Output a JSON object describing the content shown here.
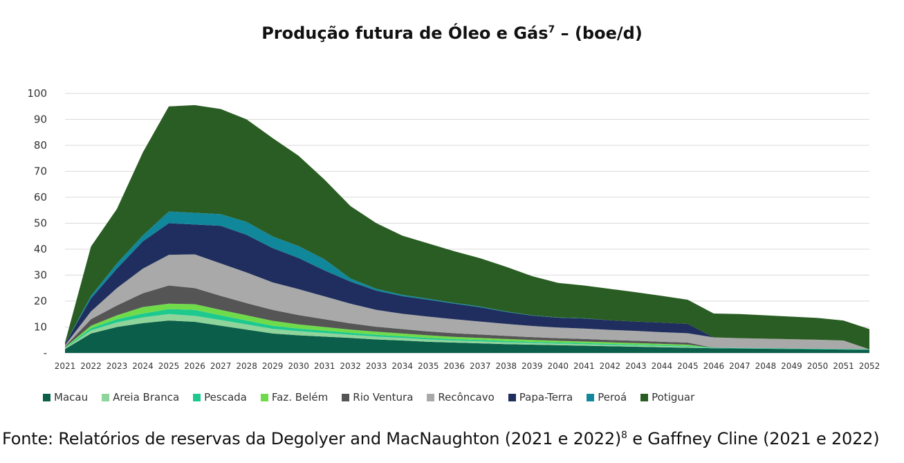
{
  "chart_data": {
    "type": "area",
    "stacked": true,
    "title": "Produção futura de Óleo e Gás",
    "title_superscript": "7",
    "title_suffix": " – (boe/d)",
    "xlabel": "",
    "ylabel": "",
    "ylim": [
      0,
      100
    ],
    "yticks": [
      {
        "value": 0,
        "label": "-"
      },
      {
        "value": 10,
        "label": "10"
      },
      {
        "value": 20,
        "label": "20"
      },
      {
        "value": 30,
        "label": "30"
      },
      {
        "value": 40,
        "label": "40"
      },
      {
        "value": 50,
        "label": "50"
      },
      {
        "value": 60,
        "label": "60"
      },
      {
        "value": 70,
        "label": "70"
      },
      {
        "value": 80,
        "label": "80"
      },
      {
        "value": 90,
        "label": "90"
      },
      {
        "value": 100,
        "label": "100"
      }
    ],
    "grid": true,
    "legend_position": "bottom",
    "categories": [
      "2021",
      "2022",
      "2023",
      "2024",
      "2025",
      "2026",
      "2027",
      "2028",
      "2029",
      "2030",
      "2031",
      "2032",
      "2033",
      "2034",
      "2035",
      "2036",
      "2037",
      "2038",
      "2039",
      "2040",
      "2041",
      "2042",
      "2043",
      "2044",
      "2045",
      "2046",
      "2047",
      "2048",
      "2049",
      "2050",
      "2051",
      "2052"
    ],
    "series": [
      {
        "name": "Macau",
        "color": "#0b5e4a",
        "values": [
          1.5,
          7.5,
          10,
          11.5,
          12.5,
          12,
          10.5,
          9,
          7.5,
          6.8,
          6.3,
          5.8,
          5.2,
          4.8,
          4.3,
          4,
          3.7,
          3.4,
          3.2,
          3,
          2.8,
          2.6,
          2.4,
          2.2,
          2.0,
          1.8,
          1.7,
          1.6,
          1.5,
          1.4,
          1.3,
          1.2
        ]
      },
      {
        "name": "Areia Branca",
        "color": "#8fd49a",
        "values": [
          0.3,
          1.2,
          1.8,
          2.2,
          2.5,
          2.3,
          2.2,
          2,
          1.8,
          1.6,
          1.4,
          1.2,
          1.1,
          1,
          0.9,
          0.8,
          0.8,
          0.7,
          0.7,
          0.6,
          0.6,
          0.5,
          0.5,
          0.5,
          0.4,
          0,
          0,
          0,
          0,
          0,
          0,
          0
        ]
      },
      {
        "name": "Pescada",
        "color": "#1ec98f",
        "values": [
          0.2,
          0.8,
          1.2,
          1.5,
          1.9,
          2.3,
          1.8,
          1.5,
          1.2,
          1,
          0.9,
          0.8,
          0.7,
          0.6,
          0.6,
          0.5,
          0.5,
          0.5,
          0.4,
          0.4,
          0.4,
          0.4,
          0.3,
          0.3,
          0.3,
          0.2,
          0.2,
          0.2,
          0.2,
          0.2,
          0.2,
          0.2
        ]
      },
      {
        "name": "Faz. Belém",
        "color": "#6fdb4a",
        "values": [
          0.2,
          1,
          1.5,
          2.5,
          2.1,
          2.2,
          2.1,
          2,
          1.9,
          1.6,
          1.4,
          1.2,
          1.2,
          1.1,
          1,
          0.9,
          0.8,
          0.8,
          0.7,
          0.7,
          0.6,
          0.6,
          0.6,
          0.5,
          0.5,
          0,
          0,
          0,
          0,
          0,
          0,
          0
        ]
      },
      {
        "name": "Rio Ventura",
        "color": "#555555",
        "values": [
          0.3,
          2.5,
          3.8,
          5.3,
          7,
          6.2,
          5.4,
          4.7,
          4.2,
          3.6,
          3,
          2.4,
          1.9,
          1.7,
          1.5,
          1.4,
          1.3,
          1.2,
          1.1,
          1,
          1,
          0.9,
          0.9,
          0.8,
          0.8,
          0,
          0,
          0,
          0,
          0,
          0,
          0
        ]
      },
      {
        "name": "Recôncavo",
        "color": "#a9a9a9",
        "values": [
          0.5,
          3,
          6.7,
          9.5,
          11.8,
          13,
          12.5,
          11.8,
          10.6,
          10,
          8.8,
          7.6,
          6.5,
          5.9,
          5.7,
          5.4,
          5,
          4.6,
          4.3,
          4.1,
          4,
          3.9,
          3.8,
          3.7,
          3.6,
          4,
          3.8,
          3.7,
          3.6,
          3.5,
          3.3,
          0
        ]
      },
      {
        "name": "Papa-Terra",
        "color": "#1f2e5e",
        "values": [
          0.5,
          5,
          7.5,
          10.5,
          12.2,
          11.5,
          14.5,
          14.5,
          13.2,
          12,
          10,
          8.5,
          7.4,
          6.8,
          6.5,
          6,
          5.5,
          4.6,
          4,
          3.8,
          3.9,
          3.7,
          3.6,
          3.7,
          3.6,
          0,
          0,
          0,
          0,
          0,
          0,
          0
        ]
      },
      {
        "name": "Peroá",
        "color": "#11879b",
        "values": [
          0,
          1,
          2,
          2.3,
          4.5,
          4.5,
          4.5,
          5,
          4.5,
          4.6,
          4.3,
          1.2,
          0.7,
          0.5,
          0.4,
          0.3,
          0.3,
          0.2,
          0.1,
          0.1,
          0.1,
          0,
          0,
          0,
          0,
          0,
          0,
          0,
          0,
          0,
          0,
          0
        ]
      },
      {
        "name": "Potiguar",
        "color": "#2a5d23",
        "values": [
          0.5,
          19,
          21,
          32,
          40.5,
          41.5,
          40.5,
          39.5,
          37.9,
          34.8,
          30.7,
          27.9,
          25.3,
          22.8,
          21.3,
          19.9,
          18.6,
          17.2,
          15.1,
          13.3,
          12.6,
          12.1,
          11.3,
          10.3,
          9.3,
          9.2,
          9.3,
          9,
          8.7,
          8.4,
          7.7,
          7.8
        ]
      }
    ]
  },
  "source_note": {
    "prefix": "Fonte: Relatórios de reservas da Degolyer and MacNaughton (2021 e 2022)",
    "superscript": "8",
    "suffix": " e Gaffney Cline (2021 e 2022)"
  }
}
